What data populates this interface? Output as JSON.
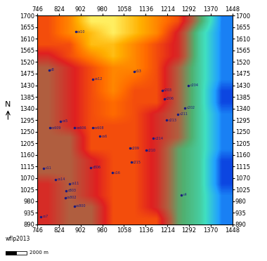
{
  "chart_data": {
    "type": "heatmap",
    "xlim": [
      746,
      1448
    ],
    "ylim": [
      890,
      1700
    ],
    "xticks": [
      746,
      824,
      902,
      980,
      1058,
      1136,
      1214,
      1292,
      1370,
      1448
    ],
    "yticks": [
      890,
      935,
      980,
      1025,
      1070,
      1115,
      1160,
      1205,
      1250,
      1295,
      1340,
      1385,
      1430,
      1475,
      1520,
      1565,
      1610,
      1655,
      1700
    ],
    "clim": [
      0,
      10
    ],
    "cells": [
      [
        6,
        5,
        5,
        7,
        7,
        7,
        4,
        3,
        1
      ],
      [
        6,
        5,
        5,
        7,
        7,
        6,
        4,
        3,
        1
      ],
      [
        6,
        5,
        6,
        7,
        7,
        6,
        4,
        3,
        1
      ],
      [
        6,
        5,
        6,
        7,
        7,
        6,
        4,
        3,
        0.5
      ],
      [
        5,
        5,
        6,
        7,
        7,
        6,
        4,
        3,
        0.5
      ],
      [
        5,
        5,
        6,
        7,
        7,
        6,
        4,
        3,
        0.5
      ],
      [
        5,
        5,
        7,
        7,
        7,
        6,
        4,
        3,
        1
      ],
      [
        5,
        5,
        7,
        7,
        7,
        6,
        5,
        3,
        1
      ],
      [
        5,
        6,
        7,
        7,
        7,
        6,
        5,
        3,
        1
      ],
      [
        5,
        6,
        7,
        7.5,
        7,
        6,
        5,
        3,
        1
      ],
      [
        5,
        6,
        7,
        7.5,
        7,
        7,
        5,
        3,
        0.5
      ],
      [
        5,
        6,
        7,
        8,
        7,
        7,
        5,
        3,
        0.5
      ],
      [
        5,
        6,
        7,
        8,
        7.5,
        7,
        5,
        3,
        1
      ],
      [
        5,
        6,
        7,
        8,
        8,
        7,
        5,
        3,
        1
      ],
      [
        6,
        7,
        8,
        9,
        8,
        7,
        6,
        3,
        1
      ],
      [
        7,
        7,
        9,
        9,
        8,
        7,
        6,
        3,
        1
      ],
      [
        7,
        8,
        9,
        10,
        9,
        8,
        6,
        3,
        1
      ],
      [
        7,
        8,
        10,
        10,
        9,
        8,
        7,
        4,
        1
      ]
    ],
    "points": [
      {
        "name": "cs10",
        "x": 884,
        "y": 1637
      },
      {
        "name": "cs12",
        "x": 946,
        "y": 1454
      },
      {
        "name": "c13",
        "x": 1094,
        "y": 1484
      },
      {
        "name": "c8",
        "x": 788,
        "y": 1489
      },
      {
        "name": "c203",
        "x": 1195,
        "y": 1410
      },
      {
        "name": "c204",
        "x": 1290,
        "y": 1429
      },
      {
        "name": "c206",
        "x": 1203,
        "y": 1377
      },
      {
        "name": "c202",
        "x": 1277,
        "y": 1342
      },
      {
        "name": "c211",
        "x": 1252,
        "y": 1318
      },
      {
        "name": "c213",
        "x": 1211,
        "y": 1295
      },
      {
        "name": "c214",
        "x": 1164,
        "y": 1224
      },
      {
        "name": "c210",
        "x": 1137,
        "y": 1177
      },
      {
        "name": "c209",
        "x": 1079,
        "y": 1186
      },
      {
        "name": "c215",
        "x": 1084,
        "y": 1131
      },
      {
        "name": "c16",
        "x": 1017,
        "y": 1090
      },
      {
        "name": "c4",
        "x": 1265,
        "y": 1005
      },
      {
        "name": "cs5",
        "x": 830,
        "y": 1290
      },
      {
        "name": "cs609",
        "x": 790,
        "y": 1265
      },
      {
        "name": "cs606",
        "x": 880,
        "y": 1265
      },
      {
        "name": "cs608",
        "x": 945,
        "y": 1265
      },
      {
        "name": "cs6",
        "x": 971,
        "y": 1232
      },
      {
        "name": "c806",
        "x": 939,
        "y": 1111
      },
      {
        "name": "c11",
        "x": 769,
        "y": 1108
      },
      {
        "name": "cs14",
        "x": 812,
        "y": 1065
      },
      {
        "name": "cs11",
        "x": 862,
        "y": 1048
      },
      {
        "name": "c803",
        "x": 850,
        "y": 1021
      },
      {
        "name": "cs802",
        "x": 846,
        "y": 994
      },
      {
        "name": "cs800",
        "x": 879,
        "y": 961
      },
      {
        "name": "cs7",
        "x": 759,
        "y": 920
      }
    ],
    "north_label": "N",
    "corner_label": "wflp2013",
    "scale_bar": "2000 m"
  }
}
